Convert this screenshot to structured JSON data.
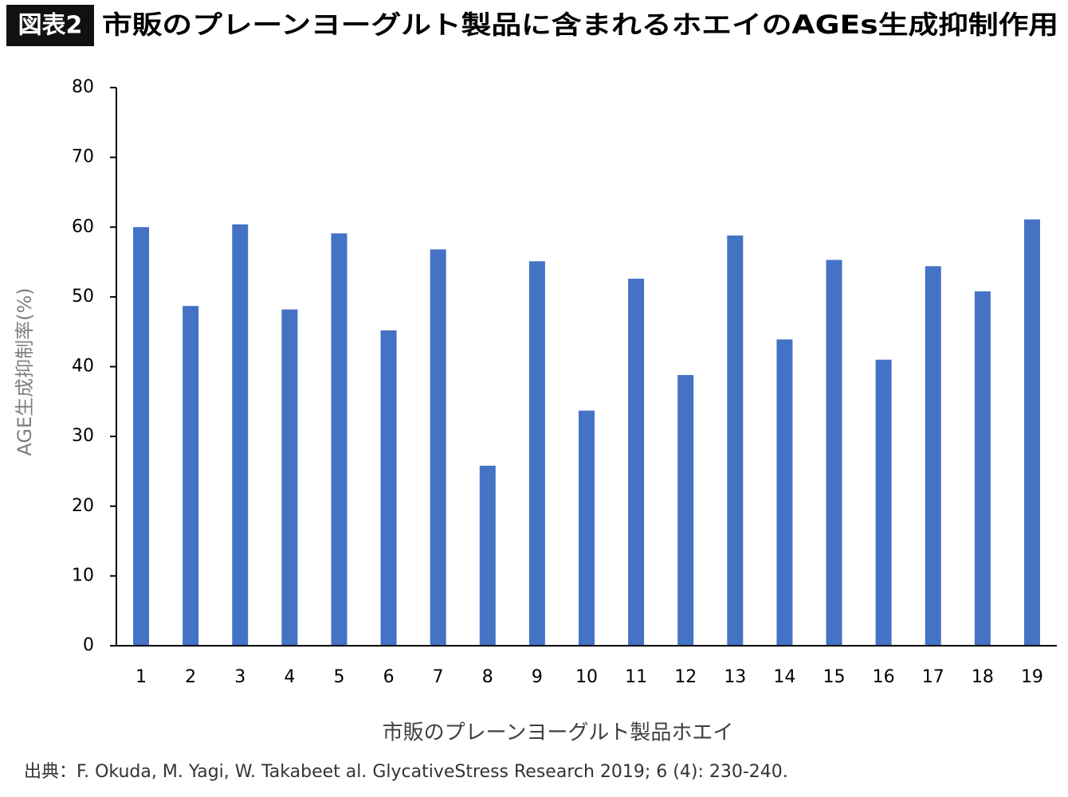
{
  "chart_data": {
    "type": "bar",
    "badge": "図表2",
    "title": "市販のプレーンヨーグルト製品に含まれるホエイのAGEs生成抑制作用",
    "x_label": "市販のプレーンヨーグルト製品ホエイ",
    "y_label": "AGE生成抑制率(%)",
    "source": "出典：F. Okuda, M. Yagi, W. Takabeet al. GlycativeStress Research 2019; 6 (4): 230-240.",
    "categories": [
      "1",
      "2",
      "3",
      "4",
      "5",
      "6",
      "7",
      "8",
      "9",
      "10",
      "11",
      "12",
      "13",
      "14",
      "15",
      "16",
      "17",
      "18",
      "19"
    ],
    "values": [
      60,
      48.7,
      60.4,
      48.2,
      59.1,
      45.2,
      56.8,
      25.8,
      55.1,
      33.7,
      52.6,
      38.8,
      58.8,
      43.9,
      55.3,
      41.0,
      54.4,
      50.8,
      61.1
    ],
    "color": "#4472c4",
    "ylim": [
      0,
      80
    ],
    "yticks": [
      0,
      10,
      20,
      30,
      40,
      50,
      60,
      70,
      80
    ],
    "grid": false
  }
}
